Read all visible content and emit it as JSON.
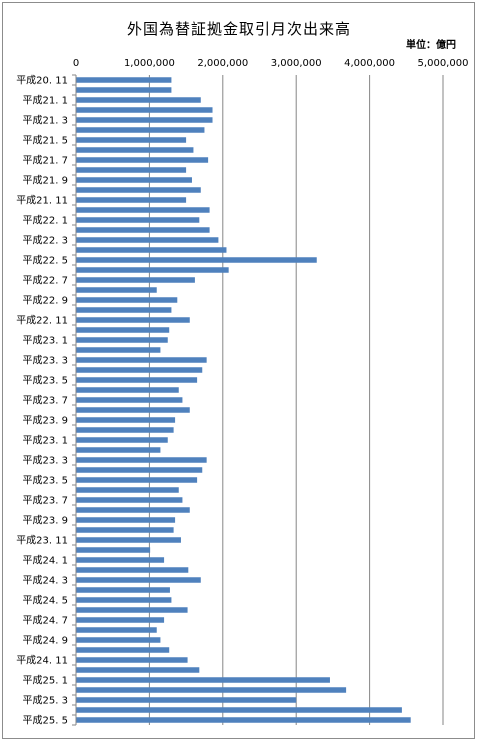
{
  "chart_data": {
    "type": "bar",
    "orientation": "horizontal",
    "title": "外国為替証拠金取引月次出来高",
    "unit": "単位：億円",
    "xlim": [
      0,
      5000000
    ],
    "x_ticks": [
      "0",
      "1,000,000",
      "2,000,000",
      "3,000,000",
      "4,000,000",
      "5,000,000"
    ],
    "x_tick_values": [
      0,
      1000000,
      2000000,
      3000000,
      4000000,
      5000000
    ],
    "grid": true,
    "bar_color": "#4f81bd",
    "categories": [
      "平成20. 11",
      "",
      "平成21. 1",
      "",
      "平成21. 3",
      "",
      "平成21. 5",
      "",
      "平成21. 7",
      "",
      "平成21. 9",
      "",
      "平成21. 11",
      "",
      "平成22. 1",
      "",
      "平成22. 3",
      "",
      "平成22. 5",
      "",
      "平成22. 7",
      "",
      "平成22. 9",
      "",
      "平成22. 11",
      "",
      "平成23. 1",
      "",
      "平成23. 3",
      "",
      "平成23. 5",
      "",
      "平成23. 7",
      "",
      "平成23. 9",
      "",
      "平成23. 1",
      "",
      "平成23. 3",
      "",
      "平成23. 5",
      "",
      "平成23. 7",
      "",
      "平成23. 9",
      "",
      "平成23. 11",
      "",
      "平成24. 1",
      "",
      "平成24. 3",
      "",
      "平成24. 5",
      "",
      "平成24. 7",
      "",
      "平成24. 9",
      "",
      "平成24. 11",
      "",
      "平成25. 1",
      "",
      "平成25. 3",
      "",
      "平成25. 5"
    ],
    "values": [
      1300000,
      1300000,
      1700000,
      1860000,
      1860000,
      1750000,
      1500000,
      1600000,
      1800000,
      1500000,
      1580000,
      1700000,
      1500000,
      1820000,
      1680000,
      1820000,
      1940000,
      2050000,
      3280000,
      2080000,
      1620000,
      1100000,
      1380000,
      1300000,
      1550000,
      1270000,
      1250000,
      1150000,
      1780000,
      1720000,
      1650000,
      1400000,
      1450000,
      1550000,
      1350000,
      1330000,
      1250000,
      1150000,
      1780000,
      1720000,
      1650000,
      1400000,
      1450000,
      1550000,
      1350000,
      1330000,
      1430000,
      1010000,
      1200000,
      1530000,
      1700000,
      1280000,
      1300000,
      1520000,
      1200000,
      1100000,
      1150000,
      1270000,
      1520000,
      1680000,
      3460000,
      3680000,
      3000000,
      4440000,
      4560000
    ]
  }
}
